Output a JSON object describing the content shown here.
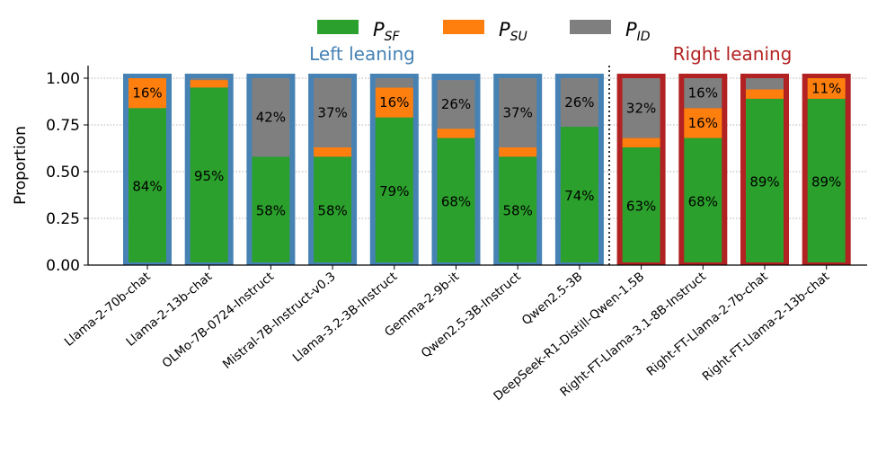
{
  "chart_data": {
    "type": "bar",
    "stacked": true,
    "ylabel": "Proportion",
    "ylim": [
      0,
      1.05
    ],
    "yticks": [
      "0.00",
      "0.25",
      "0.50",
      "0.75",
      "1.00"
    ],
    "ytick_values": [
      0,
      0.25,
      0.5,
      0.75,
      1.0
    ],
    "grid": "horizontal dotted",
    "legend": {
      "placement": "top-center",
      "entries": [
        {
          "main": "P",
          "sub": "SF",
          "color": "#2ca02c"
        },
        {
          "main": "P",
          "sub": "SU",
          "color": "#ff7f0e"
        },
        {
          "main": "P",
          "sub": "ID",
          "color": "#7f7f7f"
        }
      ]
    },
    "groups": [
      {
        "label": "Left leaning",
        "color": "#4682b4"
      },
      {
        "label": "Right leaning",
        "color": "#b22222"
      }
    ],
    "categories": [
      "Llama-2-70b-chat",
      "Llama-2-13b-chat",
      "OLMo-7B-0724-Instruct",
      "Mistral-7B-Instruct-v0.3",
      "Llama-3.2-3B-Instruct",
      "Gemma-2-9b-it",
      "Qwen2.5-3B-Instruct",
      "Qwen2.5-3B",
      "DeepSeek-R1-Distill-Qwen-1.5B",
      "Right-FT-Llama-3.1-8B-Instruct",
      "Right-FT-Llama-2-7b-chat",
      "Right-FT-Llama-2-13b-chat"
    ],
    "category_group": [
      0,
      0,
      0,
      0,
      0,
      0,
      0,
      0,
      1,
      1,
      1,
      1
    ],
    "series": [
      {
        "name": "P_SF",
        "color": "#2ca02c",
        "values": [
          0.84,
          0.95,
          0.58,
          0.58,
          0.79,
          0.68,
          0.58,
          0.74,
          0.63,
          0.68,
          0.89,
          0.89
        ],
        "labels": [
          "84%",
          "95%",
          "58%",
          "58%",
          "79%",
          "68%",
          "58%",
          "74%",
          "63%",
          "68%",
          "89%",
          "89%"
        ]
      },
      {
        "name": "P_SU",
        "color": "#ff7f0e",
        "values": [
          0.16,
          0.04,
          0.0,
          0.05,
          0.16,
          0.05,
          0.05,
          0.0,
          0.05,
          0.16,
          0.05,
          0.11
        ],
        "labels": [
          "16%",
          "",
          "",
          "",
          "16%",
          "",
          "",
          "",
          "",
          "16%",
          "",
          "11%"
        ]
      },
      {
        "name": "P_ID",
        "color": "#7f7f7f",
        "values": [
          0.0,
          0.01,
          0.42,
          0.37,
          0.05,
          0.26,
          0.37,
          0.26,
          0.32,
          0.16,
          0.06,
          0.0
        ],
        "labels": [
          "",
          "",
          "42%",
          "37%",
          "",
          "26%",
          "37%",
          "26%",
          "32%",
          "16%",
          "",
          ""
        ]
      }
    ]
  }
}
